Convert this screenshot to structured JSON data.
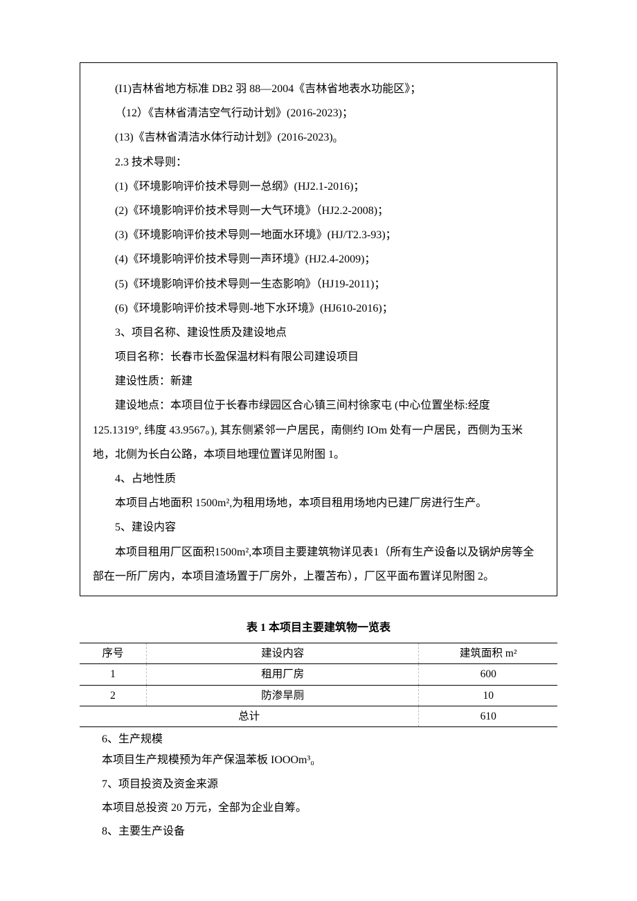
{
  "items": {
    "i11": "(I1)吉林省地方标准 DB2 羽 88—2004《吉林省地表水功能区》；",
    "i12": "（12）《吉林省清洁空气行动计划》(2016-2023)；",
    "i13": "(13)《吉林省清洁水体行动计划》(2016-2023)₀"
  },
  "sec23_title": "2.3 技术导则：",
  "sec23": {
    "g1": "(1)《环境影响评价技术导则一总纲》(HJ2.1-2016)；",
    "g2": "(2)《环境影响评价技术导则一大气环境》（HJ2.2-2008)；",
    "g3": "(3)《环境影响评价技术导则一地面水环境》(HJ/T2.3-93)；",
    "g4": "(4)《环境影响评价技术导则一声环境》(HJ2.4-2009)；",
    "g5": "(5)《环境影响评价技术导则一生态影响》（HJ19-2011)；",
    "g6": "(6)《环境影响评价技术导则-地下水环境》(HJ610-2016)；"
  },
  "sec3_title": "3、项目名称、建设性质及建设地点",
  "sec3": {
    "name": "项目名称：长春市长盈保温材料有限公司建设项目",
    "nature": "建设性质：新建",
    "loc1": "建设地点：本项目位于长春市绿园区合心镇三间村徐家屯 (中心位置坐标:经度",
    "loc2": "125.1319°, 纬度 43.9567。), 其东侧紧邻一户居民，南侧约 IOm 处有一户居民，西侧为玉米地，北侧为长白公路，本项目地理位置详见附图 1。"
  },
  "sec4_title": "4、占地性质",
  "sec4_body": "本项目占地面积 1500m²,为租用场地，本项目租用场地内已建厂房进行生产。",
  "sec5_title": "5、建设内容",
  "sec5_body": "本项目租用厂区面积1500m²,本项目主要建筑物详见表1（所有生产设备以及锅炉房等全部在一所厂房内，本项目渣场置于厂房外，上覆苫布），厂区平面布置详见附图 2。",
  "table1": {
    "title": "表 1     本项目主要建筑物一览表",
    "headers": {
      "c1": "序号",
      "c2": "建设内容",
      "c3": "建筑面积 m²"
    },
    "rows": [
      {
        "c1": "1",
        "c2": "租用厂房",
        "c3": "600"
      },
      {
        "c1": "2",
        "c2": "防渗旱厕",
        "c3": "10"
      }
    ],
    "total_label": "总计",
    "total_value": "610",
    "col_widths": {
      "c1": "14%",
      "c2": "57%",
      "c3": "29%"
    }
  },
  "sec6_title": "6、生产规模",
  "sec6_body": "本项目生产规模预为年产保温苯板 IOOOm³₀",
  "sec7_title": "7、项目投资及资金来源",
  "sec7_body": "本项目总投资 20 万元，全部为企业自筹。",
  "sec8_title": "8、主要生产设备",
  "colors": {
    "text": "#000000",
    "background": "#ffffff",
    "border_solid": "#000000",
    "border_dashed": "#bbbbbb"
  },
  "typography": {
    "body_fontsize_pt": 12,
    "line_height": 2.2,
    "font_family": "SimSun"
  }
}
